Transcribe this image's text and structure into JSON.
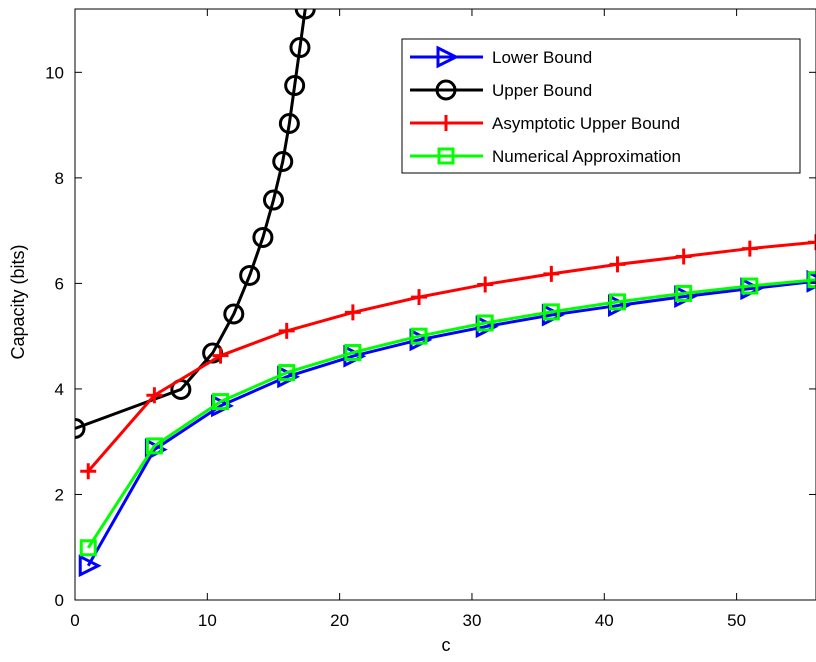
{
  "chart_data": {
    "type": "line",
    "title": "",
    "xlabel": "c",
    "ylabel": "Capacity (bits)",
    "xlim": [
      0,
      56
    ],
    "ylim": [
      0,
      11.2
    ],
    "x_ticks": [
      0,
      10,
      20,
      30,
      40,
      50
    ],
    "y_ticks": [
      0,
      2,
      4,
      6,
      8,
      10
    ],
    "legend_position": "top-right",
    "series": [
      {
        "name": "Lower Bound",
        "color": "#0000ff",
        "marker": "triangle-right",
        "x": [
          1,
          6,
          11,
          16,
          21,
          26,
          31,
          36,
          41,
          46,
          51,
          56
        ],
        "y": [
          0.65,
          2.85,
          3.68,
          4.23,
          4.62,
          4.93,
          5.18,
          5.4,
          5.58,
          5.75,
          5.9,
          6.04
        ]
      },
      {
        "name": "Upper Bound",
        "color": "#000000",
        "marker": "circle",
        "x": [
          0,
          8,
          10.4,
          12,
          13.2,
          14.2,
          15,
          15.7,
          16.2,
          16.6,
          17,
          17.4
        ],
        "y": [
          3.25,
          3.99,
          4.68,
          5.42,
          6.15,
          6.87,
          7.58,
          8.31,
          9.03,
          9.75,
          10.47,
          11.2
        ]
      },
      {
        "name": "Asymptotic Upper Bound",
        "color": "#ff0000",
        "marker": "plus",
        "x": [
          1,
          6,
          11,
          16,
          21,
          26,
          31,
          36,
          41,
          46,
          51,
          56
        ],
        "y": [
          2.44,
          3.88,
          4.63,
          5.1,
          5.45,
          5.74,
          5.98,
          6.18,
          6.36,
          6.51,
          6.66,
          6.78
        ]
      },
      {
        "name": "Numerical Approximation",
        "color": "#00ff00",
        "marker": "square",
        "x": [
          1,
          6,
          11,
          16,
          21,
          26,
          31,
          36,
          41,
          46,
          51,
          56
        ],
        "y": [
          0.99,
          2.92,
          3.76,
          4.31,
          4.69,
          5.0,
          5.25,
          5.46,
          5.65,
          5.81,
          5.95,
          6.07
        ]
      }
    ]
  }
}
